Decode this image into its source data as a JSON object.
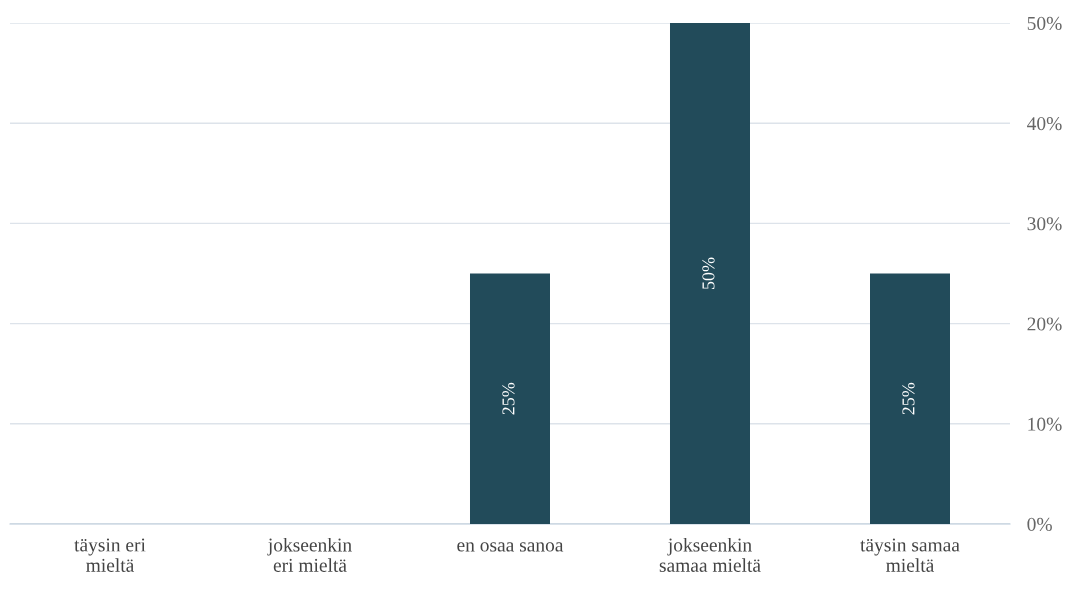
{
  "chart_data": {
    "type": "bar",
    "categories": [
      "täysin eri\nmieltä",
      "jokseenkin\neri mieltä",
      "en osaa sanoa",
      "jokseenkin\nsamaa mieltä",
      "täysin samaa\nmieltä"
    ],
    "values": [
      0,
      0,
      25,
      50,
      25
    ],
    "value_labels": [
      null,
      null,
      "25%",
      "50%",
      "25%"
    ],
    "color": "#224b5a",
    "ylim": [
      0,
      50
    ],
    "yticks": [
      {
        "value": 0,
        "label": "0%"
      },
      {
        "value": 10,
        "label": "10%"
      },
      {
        "value": 20,
        "label": "20%"
      },
      {
        "value": 30,
        "label": "30%"
      },
      {
        "value": 40,
        "label": "40%"
      },
      {
        "value": 50,
        "label": "50%"
      }
    ],
    "grid": "y"
  }
}
